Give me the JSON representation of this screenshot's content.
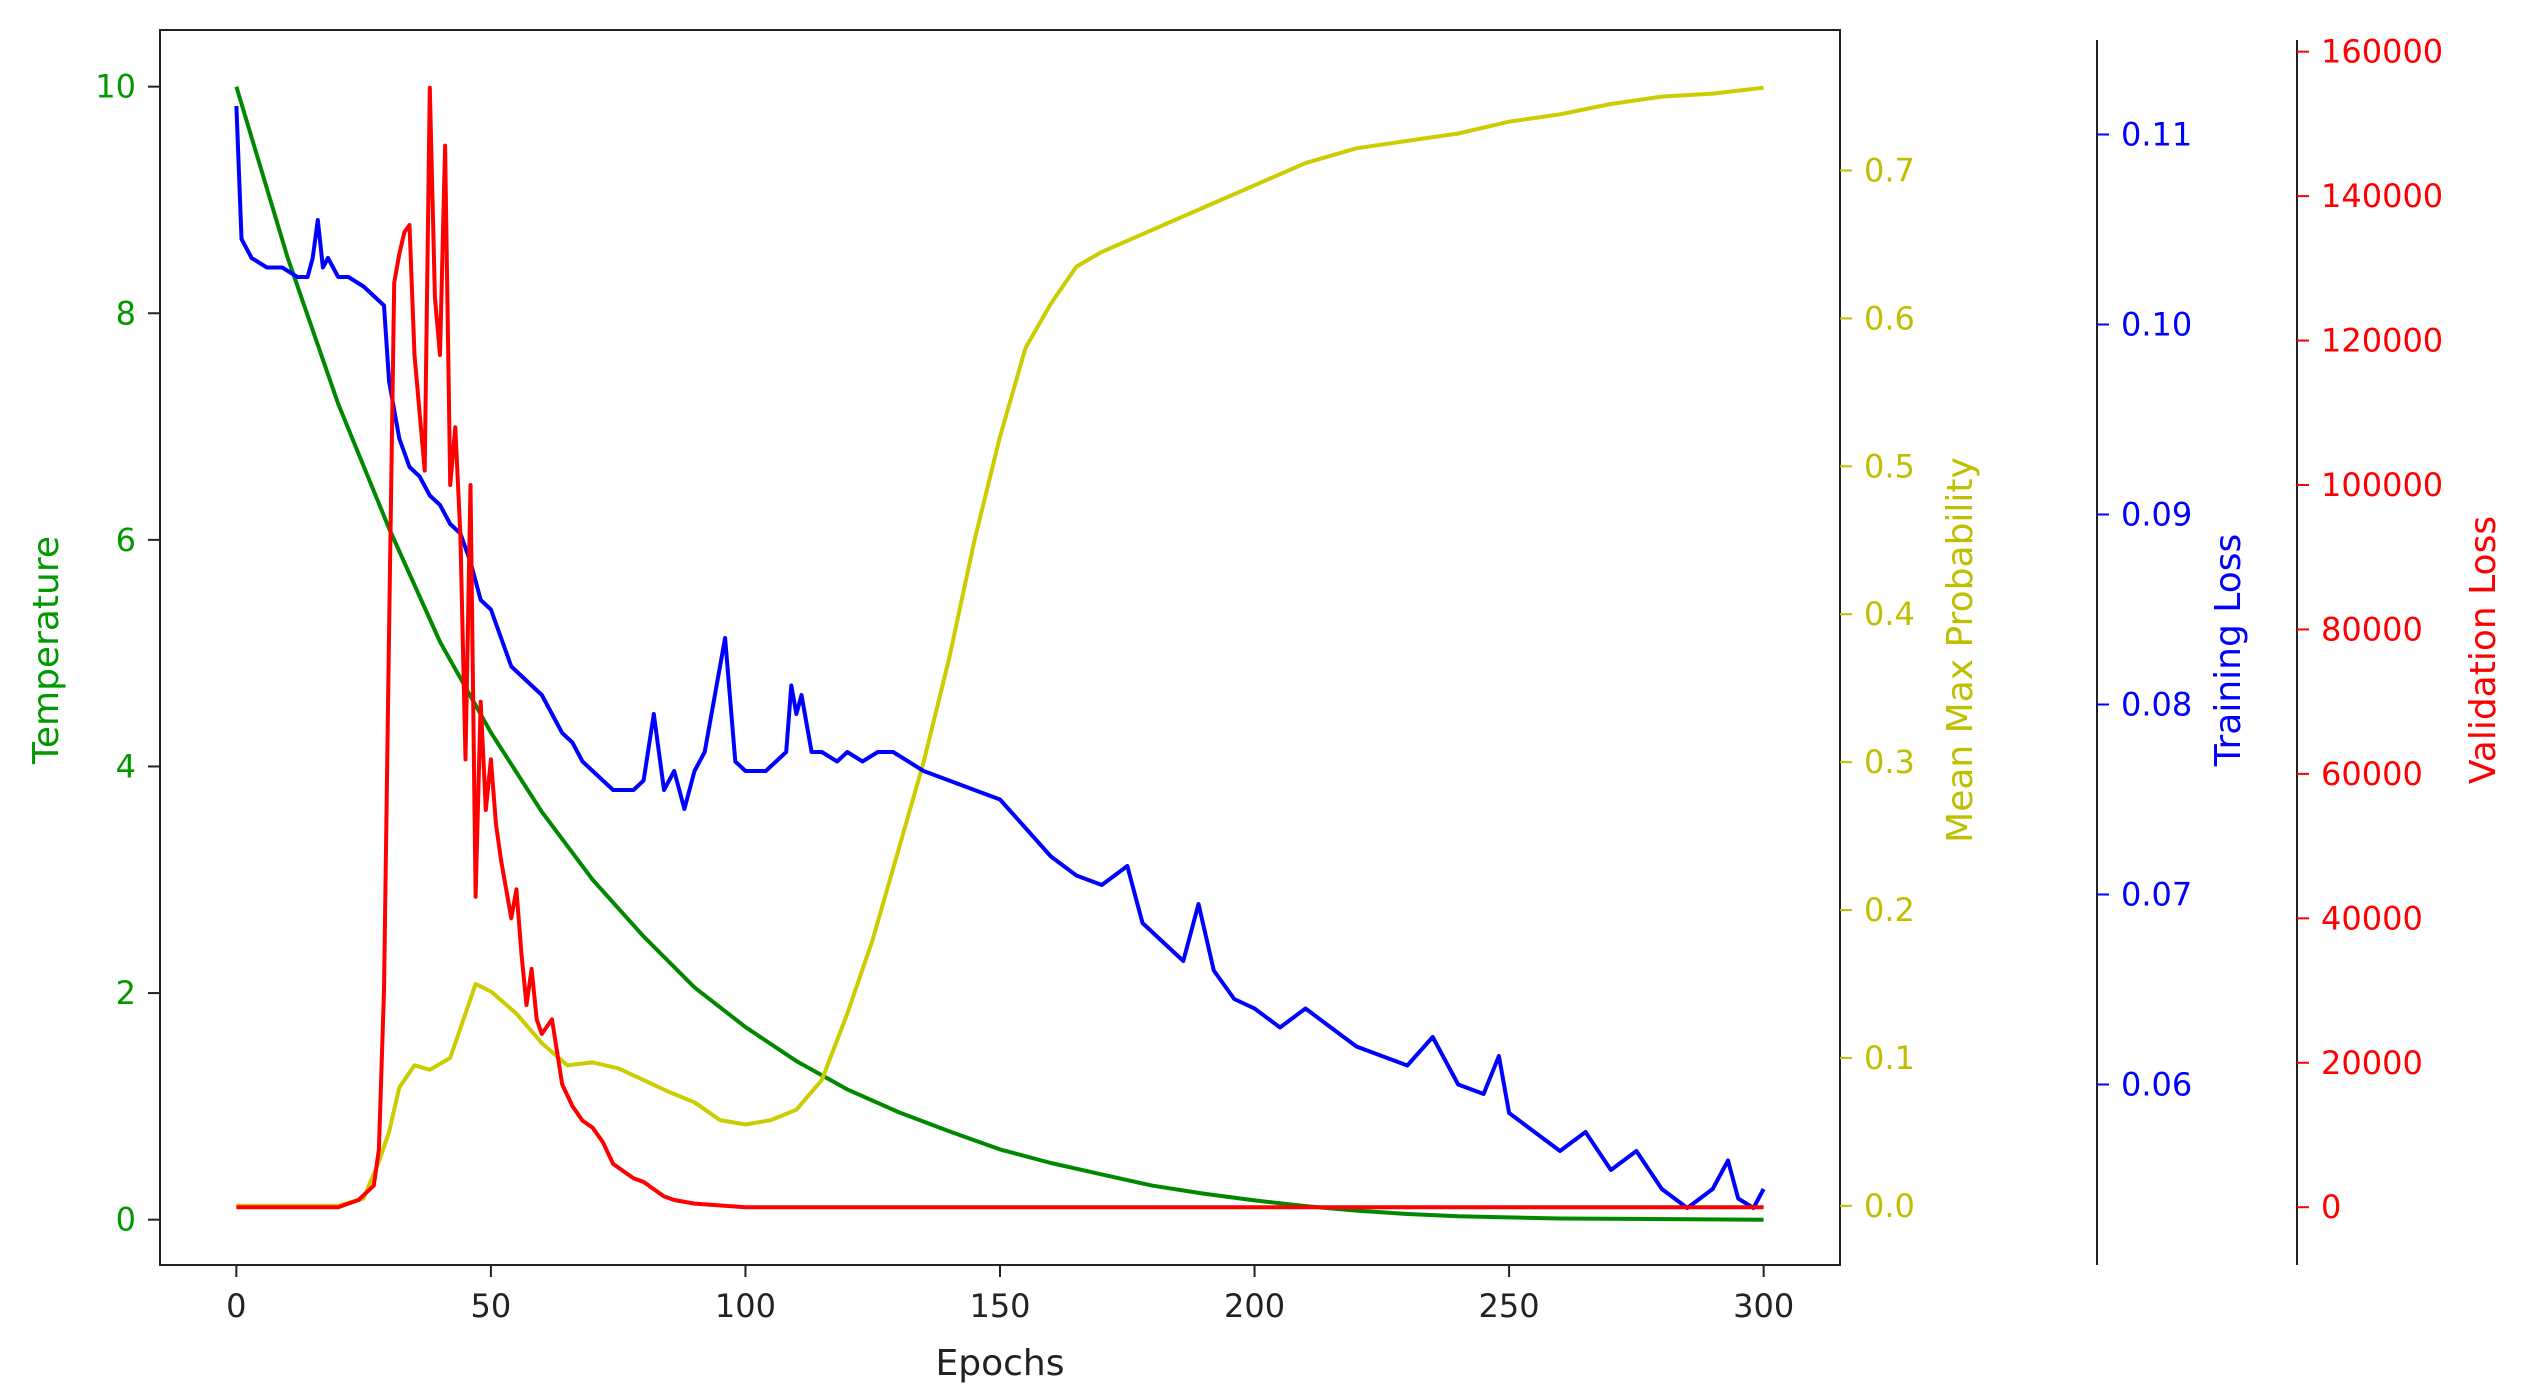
{
  "chart_data": {
    "type": "line",
    "xlabel": "Epochs",
    "xlim": [
      -15,
      315
    ],
    "x_ticks": [
      0,
      50,
      100,
      150,
      200,
      250,
      300
    ],
    "axes": {
      "temperature": {
        "label": "Temperature",
        "side": "left",
        "color": "#009900",
        "ylim": [
          -0.4,
          10.5
        ],
        "ticks": [
          0,
          2,
          4,
          6,
          8,
          10
        ]
      },
      "mean_max_probability": {
        "label": "Mean Max Probability",
        "side": "right",
        "color": "#bfbf00",
        "ylim": [
          -0.04,
          0.795
        ],
        "ticks": [
          0.0,
          0.1,
          0.2,
          0.3,
          0.4,
          0.5,
          0.6,
          0.7
        ],
        "tick_labels": [
          "0.0",
          "0.1",
          "0.2",
          "0.3",
          "0.4",
          "0.5",
          "0.6",
          "0.7"
        ]
      },
      "training_loss": {
        "label": "Training Loss",
        "side": "right",
        "color": "#0000ff",
        "ylim": [
          0.0505,
          0.1155
        ],
        "ticks": [
          0.06,
          0.07,
          0.08,
          0.09,
          0.1,
          0.11
        ],
        "tick_labels": [
          "0.06",
          "0.07",
          "0.08",
          "0.09",
          "0.10",
          "0.11"
        ]
      },
      "validation_loss": {
        "label": "Validation Loss",
        "side": "right",
        "color": "#ff0000",
        "ylim": [
          -8000,
          163000
        ],
        "ticks": [
          0,
          20000,
          40000,
          60000,
          80000,
          100000,
          120000,
          140000,
          160000
        ],
        "tick_labels": [
          "0",
          "20000",
          "40000",
          "60000",
          "80000",
          "100000",
          "120000",
          "140000",
          "160000"
        ]
      }
    },
    "series": [
      {
        "axis": "temperature",
        "color": "#008800",
        "kind": "exponential-decay",
        "points": [
          [
            0,
            10
          ],
          [
            10,
            8.5
          ],
          [
            20,
            7.2
          ],
          [
            30,
            6.1
          ],
          [
            40,
            5.1
          ],
          [
            50,
            4.3
          ],
          [
            60,
            3.6
          ],
          [
            70,
            3.0
          ],
          [
            80,
            2.5
          ],
          [
            90,
            2.05
          ],
          [
            100,
            1.7
          ],
          [
            110,
            1.4
          ],
          [
            120,
            1.15
          ],
          [
            130,
            0.95
          ],
          [
            140,
            0.78
          ],
          [
            150,
            0.62
          ],
          [
            160,
            0.5
          ],
          [
            170,
            0.4
          ],
          [
            180,
            0.3
          ],
          [
            190,
            0.23
          ],
          [
            200,
            0.17
          ],
          [
            210,
            0.12
          ],
          [
            220,
            0.08
          ],
          [
            230,
            0.05
          ],
          [
            240,
            0.03
          ],
          [
            260,
            0.01
          ],
          [
            300,
            0.0
          ]
        ]
      },
      {
        "axis": "mean_max_probability",
        "color": "#cccc00",
        "points": [
          [
            0,
            0.0
          ],
          [
            20,
            0.0
          ],
          [
            25,
            0.005
          ],
          [
            28,
            0.03
          ],
          [
            30,
            0.05
          ],
          [
            32,
            0.08
          ],
          [
            35,
            0.095
          ],
          [
            38,
            0.092
          ],
          [
            42,
            0.1
          ],
          [
            45,
            0.13
          ],
          [
            47,
            0.15
          ],
          [
            50,
            0.145
          ],
          [
            55,
            0.13
          ],
          [
            60,
            0.11
          ],
          [
            65,
            0.095
          ],
          [
            70,
            0.097
          ],
          [
            75,
            0.093
          ],
          [
            80,
            0.085
          ],
          [
            85,
            0.077
          ],
          [
            90,
            0.07
          ],
          [
            95,
            0.058
          ],
          [
            100,
            0.055
          ],
          [
            105,
            0.058
          ],
          [
            110,
            0.065
          ],
          [
            115,
            0.085
          ],
          [
            120,
            0.13
          ],
          [
            125,
            0.18
          ],
          [
            130,
            0.24
          ],
          [
            135,
            0.3
          ],
          [
            140,
            0.37
          ],
          [
            145,
            0.45
          ],
          [
            150,
            0.52
          ],
          [
            155,
            0.58
          ],
          [
            160,
            0.61
          ],
          [
            165,
            0.635
          ],
          [
            170,
            0.645
          ],
          [
            180,
            0.66
          ],
          [
            190,
            0.675
          ],
          [
            200,
            0.69
          ],
          [
            210,
            0.705
          ],
          [
            220,
            0.715
          ],
          [
            230,
            0.72
          ],
          [
            240,
            0.725
          ],
          [
            250,
            0.733
          ],
          [
            260,
            0.738
          ],
          [
            270,
            0.745
          ],
          [
            280,
            0.75
          ],
          [
            290,
            0.752
          ],
          [
            300,
            0.756
          ]
        ]
      },
      {
        "axis": "training_loss",
        "color": "#0000ff",
        "points": [
          [
            0,
            0.1115
          ],
          [
            1,
            0.1045
          ],
          [
            3,
            0.1035
          ],
          [
            6,
            0.103
          ],
          [
            9,
            0.103
          ],
          [
            12,
            0.1025
          ],
          [
            14,
            0.1025
          ],
          [
            15,
            0.1035
          ],
          [
            16,
            0.1055
          ],
          [
            17,
            0.103
          ],
          [
            18,
            0.1035
          ],
          [
            20,
            0.1025
          ],
          [
            22,
            0.1025
          ],
          [
            25,
            0.102
          ],
          [
            27,
            0.1015
          ],
          [
            29,
            0.101
          ],
          [
            30,
            0.097
          ],
          [
            32,
            0.094
          ],
          [
            34,
            0.0925
          ],
          [
            36,
            0.092
          ],
          [
            38,
            0.091
          ],
          [
            40,
            0.0905
          ],
          [
            42,
            0.0895
          ],
          [
            44,
            0.089
          ],
          [
            46,
            0.0875
          ],
          [
            47,
            0.0865
          ],
          [
            48,
            0.0855
          ],
          [
            50,
            0.085
          ],
          [
            52,
            0.0835
          ],
          [
            54,
            0.082
          ],
          [
            56,
            0.0815
          ],
          [
            58,
            0.081
          ],
          [
            60,
            0.0805
          ],
          [
            62,
            0.0795
          ],
          [
            64,
            0.0785
          ],
          [
            66,
            0.078
          ],
          [
            68,
            0.077
          ],
          [
            70,
            0.0765
          ],
          [
            72,
            0.076
          ],
          [
            74,
            0.0755
          ],
          [
            76,
            0.0755
          ],
          [
            78,
            0.0755
          ],
          [
            80,
            0.076
          ],
          [
            82,
            0.0795
          ],
          [
            84,
            0.0755
          ],
          [
            86,
            0.0765
          ],
          [
            88,
            0.0745
          ],
          [
            90,
            0.0765
          ],
          [
            92,
            0.0775
          ],
          [
            94,
            0.0805
          ],
          [
            96,
            0.0835
          ],
          [
            98,
            0.077
          ],
          [
            100,
            0.0765
          ],
          [
            102,
            0.0765
          ],
          [
            104,
            0.0765
          ],
          [
            106,
            0.077
          ],
          [
            108,
            0.0775
          ],
          [
            109,
            0.081
          ],
          [
            110,
            0.0795
          ],
          [
            111,
            0.0805
          ],
          [
            113,
            0.0775
          ],
          [
            115,
            0.0775
          ],
          [
            118,
            0.077
          ],
          [
            120,
            0.0775
          ],
          [
            123,
            0.077
          ],
          [
            126,
            0.0775
          ],
          [
            129,
            0.0775
          ],
          [
            132,
            0.077
          ],
          [
            135,
            0.0765
          ],
          [
            140,
            0.076
          ],
          [
            145,
            0.0755
          ],
          [
            150,
            0.075
          ],
          [
            155,
            0.0735
          ],
          [
            160,
            0.072
          ],
          [
            165,
            0.071
          ],
          [
            170,
            0.0705
          ],
          [
            175,
            0.0715
          ],
          [
            178,
            0.0685
          ],
          [
            182,
            0.0675
          ],
          [
            186,
            0.0665
          ],
          [
            189,
            0.0695
          ],
          [
            192,
            0.066
          ],
          [
            196,
            0.0645
          ],
          [
            200,
            0.064
          ],
          [
            205,
            0.063
          ],
          [
            210,
            0.064
          ],
          [
            215,
            0.063
          ],
          [
            220,
            0.062
          ],
          [
            225,
            0.0615
          ],
          [
            230,
            0.061
          ],
          [
            235,
            0.0625
          ],
          [
            240,
            0.06
          ],
          [
            245,
            0.0595
          ],
          [
            248,
            0.0615
          ],
          [
            250,
            0.0585
          ],
          [
            255,
            0.0575
          ],
          [
            260,
            0.0565
          ],
          [
            265,
            0.0575
          ],
          [
            270,
            0.0555
          ],
          [
            275,
            0.0565
          ],
          [
            280,
            0.0545
          ],
          [
            285,
            0.0535
          ],
          [
            290,
            0.0545
          ],
          [
            293,
            0.056
          ],
          [
            295,
            0.054
          ],
          [
            298,
            0.0535
          ],
          [
            300,
            0.0545
          ]
        ]
      },
      {
        "axis": "validation_loss",
        "color": "#ff0000",
        "points": [
          [
            0,
            0
          ],
          [
            20,
            0
          ],
          [
            24,
            1000
          ],
          [
            27,
            3000
          ],
          [
            28,
            8000
          ],
          [
            29,
            30000
          ],
          [
            30,
            80000
          ],
          [
            31,
            128000
          ],
          [
            32,
            132000
          ],
          [
            33,
            135000
          ],
          [
            34,
            136000
          ],
          [
            35,
            118000
          ],
          [
            36,
            110000
          ],
          [
            37,
            102000
          ],
          [
            38,
            155000
          ],
          [
            39,
            126000
          ],
          [
            40,
            118000
          ],
          [
            41,
            147000
          ],
          [
            42,
            100000
          ],
          [
            43,
            108000
          ],
          [
            44,
            93000
          ],
          [
            45,
            62000
          ],
          [
            46,
            100000
          ],
          [
            47,
            43000
          ],
          [
            48,
            70000
          ],
          [
            49,
            55000
          ],
          [
            50,
            62000
          ],
          [
            51,
            53000
          ],
          [
            52,
            48000
          ],
          [
            53,
            44000
          ],
          [
            54,
            40000
          ],
          [
            55,
            44000
          ],
          [
            56,
            35000
          ],
          [
            57,
            28000
          ],
          [
            58,
            33000
          ],
          [
            59,
            26000
          ],
          [
            60,
            24000
          ],
          [
            62,
            26000
          ],
          [
            64,
            17000
          ],
          [
            66,
            14000
          ],
          [
            68,
            12000
          ],
          [
            70,
            11000
          ],
          [
            72,
            9000
          ],
          [
            74,
            6000
          ],
          [
            76,
            5000
          ],
          [
            78,
            4000
          ],
          [
            80,
            3500
          ],
          [
            82,
            2500
          ],
          [
            84,
            1500
          ],
          [
            86,
            1000
          ],
          [
            90,
            500
          ],
          [
            100,
            0
          ],
          [
            300,
            0
          ]
        ]
      }
    ]
  }
}
